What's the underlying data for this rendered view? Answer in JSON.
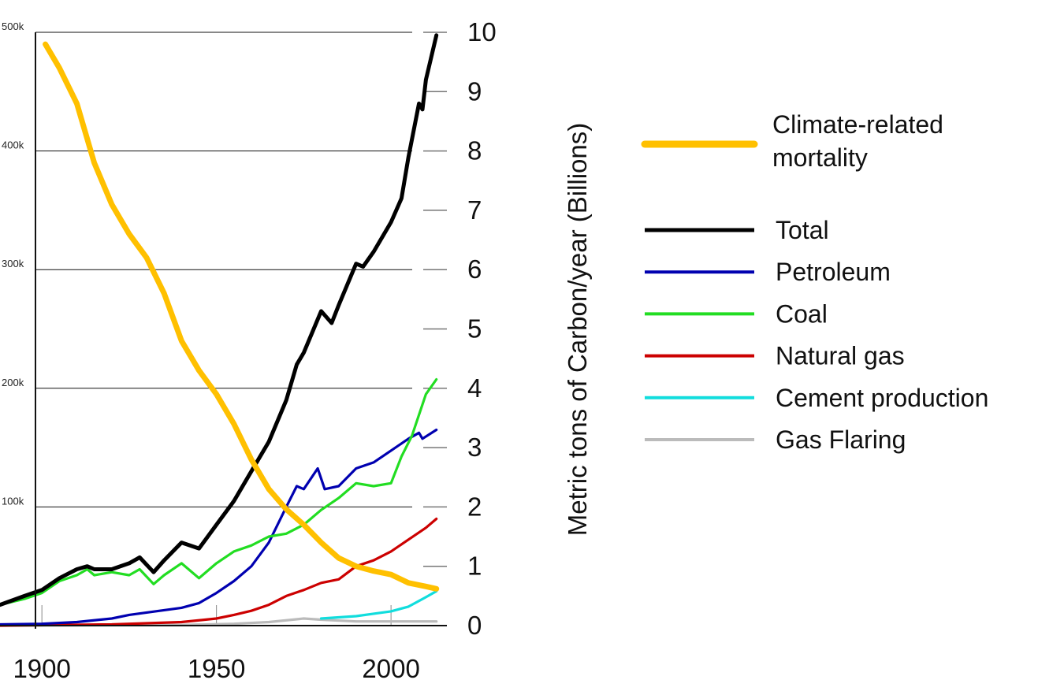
{
  "chart_data": {
    "type": "line",
    "x_ticks": [
      "1900",
      "1950",
      "2000"
    ],
    "xlim": [
      1888,
      2016
    ],
    "left_axis": {
      "ylim": [
        0,
        500000
      ],
      "ticks": [
        {
          "value": 100000,
          "label": "100k"
        },
        {
          "value": 200000,
          "label": "200k"
        },
        {
          "value": 300000,
          "label": "300k"
        },
        {
          "value": 400000,
          "label": "400k"
        },
        {
          "value": 500000,
          "label": "500k"
        }
      ]
    },
    "right_axis": {
      "label": "Metric tons of Carbon/year (Billions)",
      "ylim": [
        0,
        10
      ],
      "ticks": [
        "0",
        "1",
        "2",
        "3",
        "4",
        "5",
        "6",
        "7",
        "8",
        "9",
        "10"
      ]
    },
    "grid": "horizontal",
    "legend": {
      "position": "right",
      "mortality_label": "Climate-related mortality",
      "mortality_line1": "Climate-related",
      "mortality_line2": "mortality",
      "entries": [
        "Total",
        "Petroleum",
        "Coal",
        "Natural gas",
        "Cement production",
        "Gas Flaring"
      ]
    },
    "series": [
      {
        "name": "Climate-related mortality",
        "axis": "left",
        "color": "#ffc000",
        "points": [
          [
            1901,
            490000
          ],
          [
            1905,
            470000
          ],
          [
            1910,
            440000
          ],
          [
            1915,
            390000
          ],
          [
            1920,
            355000
          ],
          [
            1925,
            330000
          ],
          [
            1930,
            310000
          ],
          [
            1935,
            280000
          ],
          [
            1940,
            240000
          ],
          [
            1945,
            215000
          ],
          [
            1950,
            195000
          ],
          [
            1955,
            170000
          ],
          [
            1960,
            140000
          ],
          [
            1965,
            115000
          ],
          [
            1970,
            98000
          ],
          [
            1975,
            85000
          ],
          [
            1980,
            70000
          ],
          [
            1985,
            57000
          ],
          [
            1990,
            50000
          ],
          [
            1995,
            46000
          ],
          [
            2000,
            43000
          ],
          [
            2005,
            36000
          ],
          [
            2010,
            33000
          ],
          [
            2013,
            31000
          ]
        ]
      },
      {
        "name": "Total",
        "axis": "right",
        "color": "#000000",
        "points": [
          [
            1888,
            0.35
          ],
          [
            1895,
            0.5
          ],
          [
            1900,
            0.6
          ],
          [
            1905,
            0.8
          ],
          [
            1910,
            0.95
          ],
          [
            1913,
            1.0
          ],
          [
            1915,
            0.95
          ],
          [
            1920,
            0.95
          ],
          [
            1925,
            1.05
          ],
          [
            1928,
            1.15
          ],
          [
            1932,
            0.9
          ],
          [
            1935,
            1.1
          ],
          [
            1940,
            1.4
          ],
          [
            1945,
            1.3
          ],
          [
            1950,
            1.7
          ],
          [
            1955,
            2.1
          ],
          [
            1960,
            2.6
          ],
          [
            1965,
            3.1
          ],
          [
            1970,
            3.8
          ],
          [
            1973,
            4.4
          ],
          [
            1975,
            4.6
          ],
          [
            1980,
            5.3
          ],
          [
            1983,
            5.1
          ],
          [
            1985,
            5.4
          ],
          [
            1990,
            6.1
          ],
          [
            1992,
            6.05
          ],
          [
            1995,
            6.3
          ],
          [
            2000,
            6.8
          ],
          [
            2003,
            7.2
          ],
          [
            2005,
            7.9
          ],
          [
            2008,
            8.8
          ],
          [
            2009,
            8.7
          ],
          [
            2010,
            9.2
          ],
          [
            2013,
            9.95
          ]
        ]
      },
      {
        "name": "Petroleum",
        "axis": "right",
        "color": "#0000b0",
        "points": [
          [
            1888,
            0.02
          ],
          [
            1900,
            0.03
          ],
          [
            1910,
            0.06
          ],
          [
            1920,
            0.12
          ],
          [
            1925,
            0.18
          ],
          [
            1930,
            0.22
          ],
          [
            1935,
            0.26
          ],
          [
            1940,
            0.3
          ],
          [
            1945,
            0.38
          ],
          [
            1950,
            0.55
          ],
          [
            1955,
            0.75
          ],
          [
            1960,
            1.0
          ],
          [
            1965,
            1.4
          ],
          [
            1970,
            2.0
          ],
          [
            1973,
            2.35
          ],
          [
            1975,
            2.3
          ],
          [
            1979,
            2.65
          ],
          [
            1981,
            2.3
          ],
          [
            1985,
            2.35
          ],
          [
            1990,
            2.65
          ],
          [
            1995,
            2.75
          ],
          [
            2000,
            2.95
          ],
          [
            2005,
            3.15
          ],
          [
            2008,
            3.25
          ],
          [
            2009,
            3.15
          ],
          [
            2013,
            3.3
          ]
        ]
      },
      {
        "name": "Coal",
        "axis": "right",
        "color": "#22dd22",
        "points": [
          [
            1888,
            0.35
          ],
          [
            1895,
            0.45
          ],
          [
            1900,
            0.55
          ],
          [
            1905,
            0.75
          ],
          [
            1910,
            0.85
          ],
          [
            1913,
            0.95
          ],
          [
            1915,
            0.85
          ],
          [
            1920,
            0.9
          ],
          [
            1925,
            0.85
          ],
          [
            1928,
            0.95
          ],
          [
            1932,
            0.7
          ],
          [
            1935,
            0.85
          ],
          [
            1940,
            1.05
          ],
          [
            1945,
            0.8
          ],
          [
            1950,
            1.05
          ],
          [
            1955,
            1.25
          ],
          [
            1960,
            1.35
          ],
          [
            1965,
            1.5
          ],
          [
            1970,
            1.55
          ],
          [
            1975,
            1.7
          ],
          [
            1980,
            1.95
          ],
          [
            1985,
            2.15
          ],
          [
            1990,
            2.4
          ],
          [
            1995,
            2.35
          ],
          [
            2000,
            2.4
          ],
          [
            2003,
            2.85
          ],
          [
            2006,
            3.2
          ],
          [
            2010,
            3.9
          ],
          [
            2013,
            4.15
          ]
        ]
      },
      {
        "name": "Natural gas",
        "axis": "right",
        "color": "#cc0000",
        "points": [
          [
            1888,
            0.0
          ],
          [
            1920,
            0.02
          ],
          [
            1930,
            0.04
          ],
          [
            1940,
            0.06
          ],
          [
            1950,
            0.12
          ],
          [
            1955,
            0.18
          ],
          [
            1960,
            0.25
          ],
          [
            1965,
            0.35
          ],
          [
            1970,
            0.5
          ],
          [
            1975,
            0.6
          ],
          [
            1980,
            0.72
          ],
          [
            1985,
            0.78
          ],
          [
            1990,
            1.0
          ],
          [
            1995,
            1.1
          ],
          [
            2000,
            1.25
          ],
          [
            2005,
            1.45
          ],
          [
            2010,
            1.65
          ],
          [
            2013,
            1.8
          ]
        ]
      },
      {
        "name": "Cement production",
        "axis": "right",
        "color": "#11dddd",
        "points": [
          [
            1980,
            0.12
          ],
          [
            1985,
            0.14
          ],
          [
            1990,
            0.16
          ],
          [
            1995,
            0.2
          ],
          [
            2000,
            0.24
          ],
          [
            2005,
            0.32
          ],
          [
            2010,
            0.48
          ],
          [
            2013,
            0.58
          ]
        ]
      },
      {
        "name": "Gas Flaring",
        "axis": "right",
        "color": "#bbbbbb",
        "points": [
          [
            1888,
            0.0
          ],
          [
            1940,
            0.01
          ],
          [
            1955,
            0.03
          ],
          [
            1965,
            0.06
          ],
          [
            1975,
            0.12
          ],
          [
            1980,
            0.1
          ],
          [
            1990,
            0.07
          ],
          [
            2000,
            0.07
          ],
          [
            2013,
            0.07
          ]
        ]
      }
    ]
  }
}
